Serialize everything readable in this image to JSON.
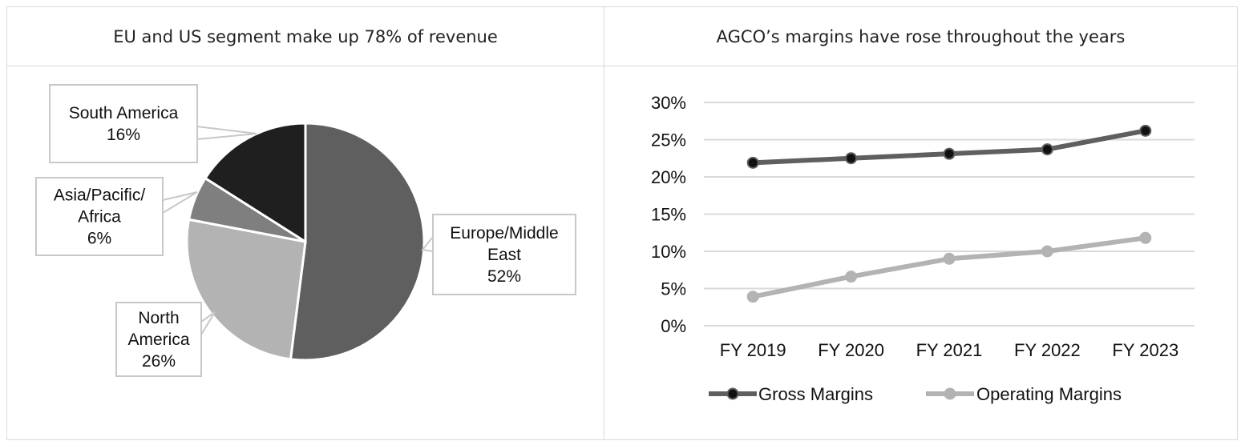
{
  "panels": {
    "left_title": "EU and US segment make up 78% of revenue",
    "right_title": "AGCO’s margins have rose throughout the years"
  },
  "chart_data": [
    {
      "type": "pie",
      "title": "EU and US segment make up 78% of revenue",
      "slices": [
        {
          "name": "Europe/Middle East",
          "value": 52,
          "label_lines": [
            "Europe/Middle",
            "East",
            "52%"
          ],
          "color": "#5f5f5f"
        },
        {
          "name": "North America",
          "value": 26,
          "label_lines": [
            "North",
            "America",
            "26%"
          ],
          "color": "#b3b3b3"
        },
        {
          "name": "Asia/Pacific/Africa",
          "value": 6,
          "label_lines": [
            "Asia/Pacific/",
            "Africa",
            "6%"
          ],
          "color": "#7f7f7f"
        },
        {
          "name": "South America",
          "value": 16,
          "label_lines": [
            "South America",
            "16%"
          ],
          "color": "#1f1f1f"
        }
      ]
    },
    {
      "type": "line",
      "title": "AGCO’s margins have rose throughout the years",
      "categories": [
        "FY 2019",
        "FY 2020",
        "FY 2021",
        "FY 2022",
        "FY 2023"
      ],
      "ylim": [
        0,
        30
      ],
      "yticks": [
        "0%",
        "5%",
        "10%",
        "15%",
        "20%",
        "25%",
        "30%"
      ],
      "grid": true,
      "legend_position": "bottom",
      "series": [
        {
          "name": "Gross Margins",
          "values": [
            21.9,
            22.5,
            23.1,
            23.7,
            26.2
          ],
          "color": "#5f5f5f",
          "marker_color": "#111111"
        },
        {
          "name": "Operating Margins",
          "values": [
            3.9,
            6.6,
            9.0,
            10.0,
            11.8
          ],
          "color": "#b3b3b3",
          "marker_color": "#b3b3b3"
        }
      ]
    }
  ]
}
